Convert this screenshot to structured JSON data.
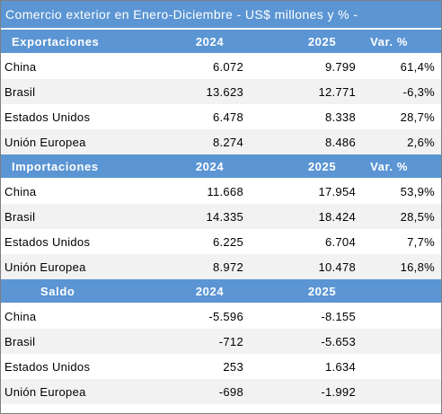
{
  "title": "Comercio exterior en Enero-Diciembre - US$ millones y % -",
  "sections": [
    {
      "header": {
        "label": "Exportaciones",
        "y1": "2024",
        "y2": "2025",
        "var": "Var. %"
      },
      "rows": [
        {
          "country": "China",
          "v2024": "6.072",
          "v2025": "9.799",
          "var": "61,4%"
        },
        {
          "country": "Brasil",
          "v2024": "13.623",
          "v2025": "12.771",
          "var": "-6,3%"
        },
        {
          "country": "Estados Unidos",
          "v2024": "6.478",
          "v2025": "8.338",
          "var": "28,7%"
        },
        {
          "country": "Unión Europea",
          "v2024": "8.274",
          "v2025": "8.486",
          "var": "2,6%"
        }
      ]
    },
    {
      "header": {
        "label": "Importaciones",
        "y1": "2024",
        "y2": "2025",
        "var": "Var. %"
      },
      "rows": [
        {
          "country": "China",
          "v2024": "11.668",
          "v2025": "17.954",
          "var": "53,9%"
        },
        {
          "country": "Brasil",
          "v2024": "14.335",
          "v2025": "18.424",
          "var": "28,5%"
        },
        {
          "country": "Estados Unidos",
          "v2024": "6.225",
          "v2025": "6.704",
          "var": "7,7%"
        },
        {
          "country": "Unión Europea",
          "v2024": "8.972",
          "v2025": "10.478",
          "var": "16,8%"
        }
      ]
    },
    {
      "header": {
        "label": "Saldo",
        "y1": "2024",
        "y2": "2025",
        "var": ""
      },
      "rows": [
        {
          "country": "China",
          "v2024": "-5.596",
          "v2025": "-8.155",
          "var": ""
        },
        {
          "country": "Brasil",
          "v2024": "-712",
          "v2025": "-5.653",
          "var": ""
        },
        {
          "country": "Estados Unidos",
          "v2024": "253",
          "v2025": "1.634",
          "var": ""
        },
        {
          "country": "Unión Europea",
          "v2024": "-698",
          "v2025": "-1.992",
          "var": ""
        }
      ]
    }
  ],
  "colors": {
    "header_bg": "#5b95d3",
    "header_text": "#ffffff",
    "stripe": "#f2f2f2"
  }
}
